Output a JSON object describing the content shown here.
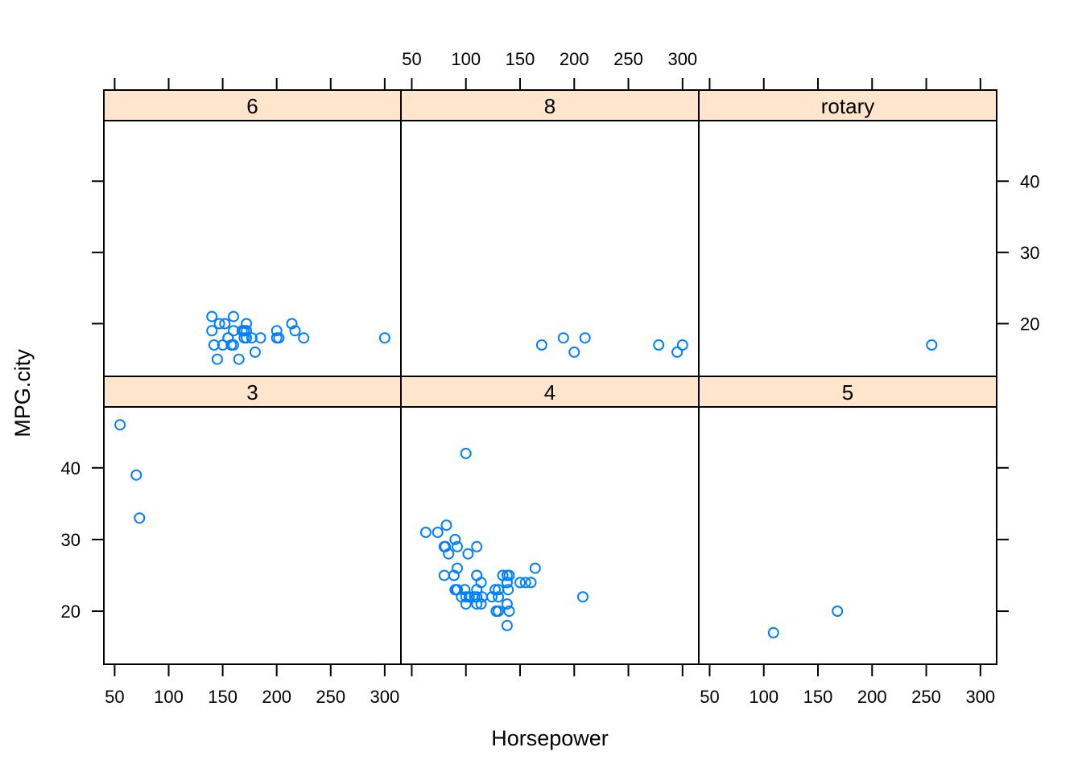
{
  "chart_data": {
    "type": "scatter",
    "xlabel": "Horsepower",
    "ylabel": "MPG.city",
    "xlim": [
      40,
      315
    ],
    "ylim": [
      12.6,
      48.5
    ],
    "x_ticks": [
      50,
      100,
      150,
      200,
      250,
      300
    ],
    "y_ticks": [
      20,
      30,
      40
    ],
    "strip_color": "#ffe5cc",
    "point_color": "#0080ff",
    "panels": [
      {
        "label": "6",
        "row": 0,
        "col": 0,
        "x": [
          140,
          140,
          142,
          145,
          147,
          150,
          152,
          155,
          155,
          158,
          160,
          160,
          160,
          165,
          168,
          170,
          170,
          170,
          172,
          172,
          172,
          177,
          180,
          185,
          200,
          200,
          202,
          214,
          217,
          225,
          300
        ],
        "y": [
          21,
          19,
          17,
          15,
          20,
          17,
          20,
          18,
          18,
          17,
          21,
          19,
          17,
          15,
          19,
          19,
          19,
          18,
          20,
          19,
          18,
          18,
          16,
          18,
          19,
          18,
          18,
          20,
          19,
          18,
          18
        ]
      },
      {
        "label": "8",
        "row": 0,
        "col": 1,
        "x": [
          170,
          190,
          200,
          210,
          278,
          295,
          300
        ],
        "y": [
          17,
          18,
          16,
          18,
          17,
          16,
          17
        ]
      },
      {
        "label": "rotary",
        "row": 0,
        "col": 2,
        "x": [
          255
        ],
        "y": [
          17
        ]
      },
      {
        "label": "3",
        "row": 1,
        "col": 0,
        "x": [
          55,
          70,
          73
        ],
        "y": [
          46,
          39,
          33
        ]
      },
      {
        "label": "4",
        "row": 1,
        "col": 1,
        "x": [
          63,
          74,
          82,
          80,
          81,
          84,
          80,
          90,
          92,
          92,
          89,
          90,
          91,
          92,
          96,
          99,
          100,
          100,
          100,
          102,
          103,
          108,
          110,
          110,
          110,
          110,
          110,
          110,
          114,
          114,
          115,
          124,
          127,
          128,
          128,
          130,
          130,
          130,
          134,
          138,
          138,
          138,
          138,
          139,
          140,
          138,
          140,
          150,
          155,
          160,
          164,
          208
        ],
        "y": [
          31,
          31,
          32,
          29,
          29,
          28,
          25,
          30,
          29,
          26,
          25,
          23,
          23,
          23,
          22,
          23,
          22,
          21,
          42,
          28,
          22,
          22,
          29,
          25,
          25,
          23,
          22,
          21,
          24,
          21,
          22,
          22,
          23,
          20,
          20,
          23,
          22,
          20,
          25,
          21,
          18,
          24,
          25,
          23,
          20,
          24,
          25,
          24,
          24,
          24,
          26,
          22
        ]
      },
      {
        "label": "5",
        "row": 1,
        "col": 2,
        "x": [
          109,
          168
        ],
        "y": [
          17,
          20
        ]
      }
    ]
  }
}
